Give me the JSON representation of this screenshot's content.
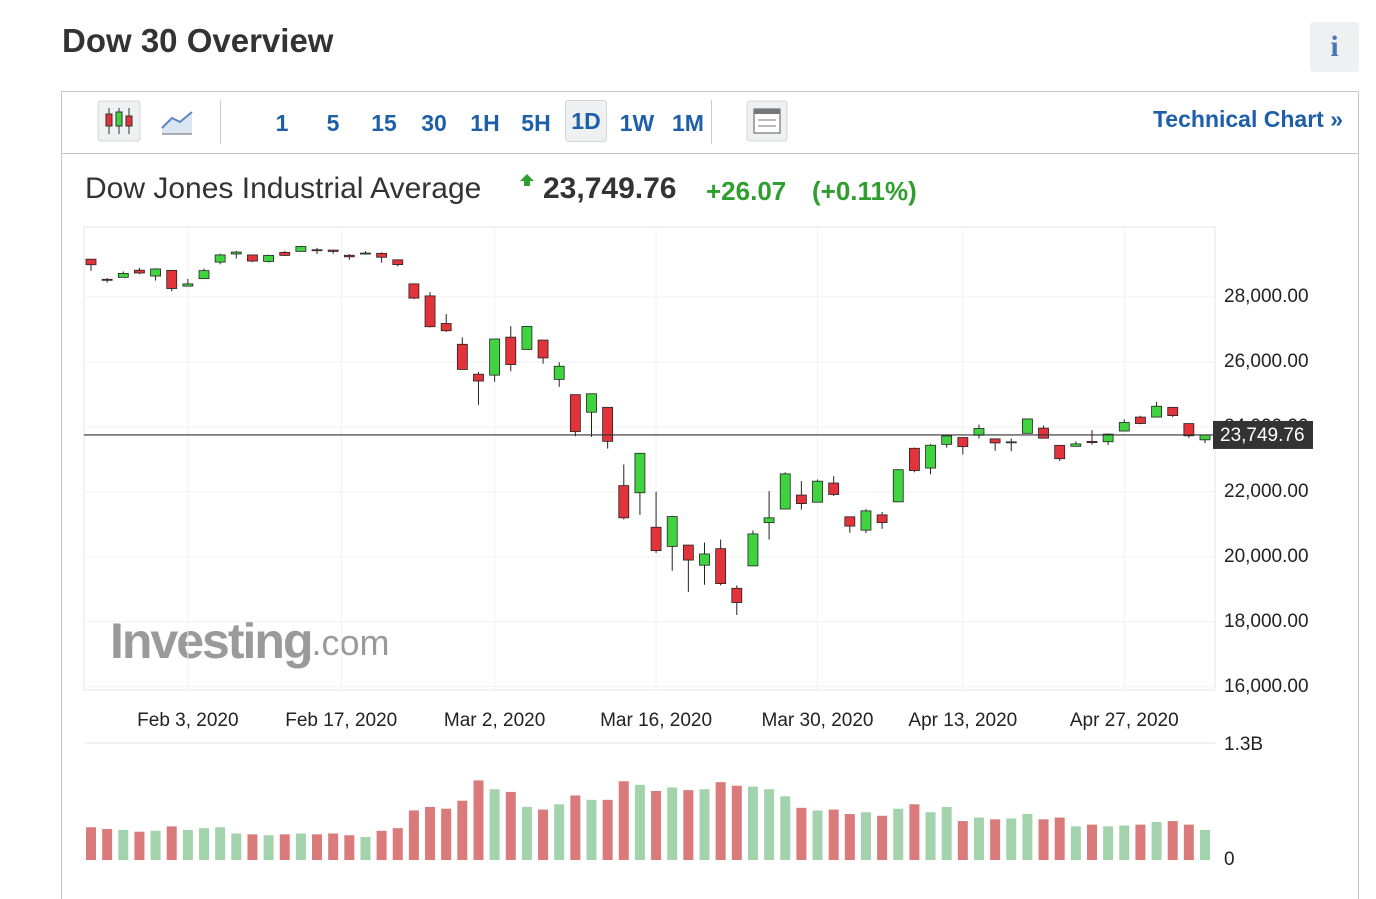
{
  "header": {
    "title": "Dow 30 Overview",
    "info": "i"
  },
  "toolbar": {
    "intervals": [
      "1",
      "5",
      "15",
      "30",
      "1H",
      "5H",
      "1D",
      "1W",
      "1M"
    ],
    "selected": "1D",
    "link": "Technical Chart »"
  },
  "quote": {
    "name": "Dow Jones Industrial Average",
    "price": "23,749.76",
    "change": "+26.07",
    "change_pct": "(+0.11%)"
  },
  "watermark": {
    "brand": "Investing",
    "suffix": ".com"
  },
  "chart_data": {
    "type": "candlestick",
    "x": [
      "2020-01-24",
      "2020-01-27",
      "2020-01-28",
      "2020-01-29",
      "2020-01-30",
      "2020-01-31",
      "2020-02-03",
      "2020-02-04",
      "2020-02-05",
      "2020-02-06",
      "2020-02-07",
      "2020-02-10",
      "2020-02-11",
      "2020-02-12",
      "2020-02-13",
      "2020-02-14",
      "2020-02-18",
      "2020-02-19",
      "2020-02-20",
      "2020-02-21",
      "2020-02-24",
      "2020-02-25",
      "2020-02-26",
      "2020-02-27",
      "2020-02-28",
      "2020-03-02",
      "2020-03-03",
      "2020-03-04",
      "2020-03-05",
      "2020-03-06",
      "2020-03-09",
      "2020-03-10",
      "2020-03-11",
      "2020-03-12",
      "2020-03-13",
      "2020-03-16",
      "2020-03-17",
      "2020-03-18",
      "2020-03-19",
      "2020-03-20",
      "2020-03-23",
      "2020-03-24",
      "2020-03-25",
      "2020-03-26",
      "2020-03-27",
      "2020-03-30",
      "2020-03-31",
      "2020-04-01",
      "2020-04-02",
      "2020-04-03",
      "2020-04-06",
      "2020-04-07",
      "2020-04-08",
      "2020-04-09",
      "2020-04-13",
      "2020-04-14",
      "2020-04-15",
      "2020-04-16",
      "2020-04-17",
      "2020-04-20",
      "2020-04-21",
      "2020-04-22",
      "2020-04-23",
      "2020-04-24",
      "2020-04-27",
      "2020-04-28",
      "2020-04-29",
      "2020-04-30",
      "2020-05-01",
      "2020-05-04"
    ],
    "open": [
      29160,
      28540,
      28600,
      28820,
      28640,
      28815,
      28330,
      28560,
      29070,
      29320,
      29290,
      29090,
      29370,
      29400,
      29450,
      29440,
      29280,
      29320,
      29340,
      29140,
      28400,
      28030,
      27180,
      26540,
      25620,
      25590,
      26760,
      26380,
      26670,
      25460,
      24990,
      24450,
      24600,
      22190,
      21970,
      20910,
      20320,
      20360,
      19740,
      20250,
      19030,
      19720,
      21050,
      21470,
      21900,
      21680,
      22270,
      21230,
      20820,
      21290,
      21690,
      23340,
      22730,
      23460,
      23670,
      23740,
      23630,
      23520,
      23800,
      23960,
      23430,
      23400,
      23550,
      23540,
      23870,
      24300,
      24300,
      24600,
      24100,
      23600
    ],
    "high": [
      29160,
      28580,
      28780,
      28890,
      28880,
      28830,
      28550,
      28870,
      29330,
      29410,
      29290,
      29300,
      29410,
      29570,
      29510,
      29440,
      29320,
      29410,
      29370,
      29140,
      28400,
      28150,
      27470,
      26750,
      25690,
      26710,
      27100,
      27100,
      26670,
      25990,
      24990,
      25020,
      24600,
      22840,
      23190,
      22000,
      21260,
      20370,
      20440,
      20530,
      19120,
      20810,
      22020,
      22600,
      22330,
      22380,
      22480,
      21230,
      21470,
      21380,
      22700,
      23360,
      23470,
      23720,
      23670,
      24070,
      23630,
      23640,
      24260,
      24040,
      23430,
      23550,
      23900,
      23800,
      24230,
      24340,
      24770,
      24600,
      24100,
      23750
    ],
    "low": [
      28800,
      28440,
      28600,
      28700,
      28500,
      28170,
      28330,
      28560,
      29000,
      29180,
      29070,
      29060,
      29260,
      29400,
      29320,
      29330,
      29140,
      29300,
      29050,
      28940,
      27930,
      27060,
      26920,
      25760,
      24680,
      25390,
      25710,
      26380,
      25940,
      25230,
      23710,
      23690,
      23330,
      21150,
      21290,
      20120,
      19570,
      18920,
      19140,
      19120,
      18210,
      19720,
      20530,
      21470,
      21450,
      21680,
      21870,
      20740,
      20730,
      20860,
      21690,
      22600,
      22540,
      23360,
      23150,
      23640,
      23260,
      23250,
      23800,
      23650,
      22950,
      23400,
      23450,
      23440,
      23870,
      24080,
      24300,
      24300,
      23660,
      23500
    ],
    "close": [
      28989,
      28535,
      28722,
      28734,
      28859,
      28256,
      28399,
      28807,
      29290,
      29379,
      29102,
      29276,
      29276,
      29551,
      29423,
      29398,
      29232,
      29348,
      29219,
      28992,
      27961,
      27081,
      26957,
      25766,
      25409,
      26703,
      25917,
      27091,
      26121,
      25865,
      23851,
      25018,
      23553,
      21200,
      23185,
      20189,
      21237,
      19899,
      20087,
      19174,
      18592,
      20704,
      21200,
      22552,
      21637,
      22327,
      21917,
      20944,
      21413,
      21053,
      22680,
      22654,
      23434,
      23719,
      23390,
      23950,
      23505,
      23538,
      24242,
      23650,
      23019,
      23475,
      23515,
      23775,
      24134,
      24101,
      24634,
      24346,
      23724,
      23750
    ],
    "volume": [
      370000000,
      350000000,
      340000000,
      320000000,
      330000000,
      380000000,
      340000000,
      360000000,
      370000000,
      300000000,
      290000000,
      280000000,
      290000000,
      300000000,
      290000000,
      300000000,
      280000000,
      260000000,
      330000000,
      360000000,
      560000000,
      600000000,
      580000000,
      670000000,
      900000000,
      800000000,
      770000000,
      600000000,
      570000000,
      630000000,
      730000000,
      680000000,
      680000000,
      890000000,
      850000000,
      780000000,
      820000000,
      790000000,
      800000000,
      880000000,
      840000000,
      830000000,
      800000000,
      720000000,
      590000000,
      560000000,
      570000000,
      520000000,
      540000000,
      500000000,
      580000000,
      630000000,
      540000000,
      600000000,
      440000000,
      480000000,
      460000000,
      470000000,
      520000000,
      460000000,
      480000000,
      380000000,
      400000000,
      380000000,
      390000000,
      400000000,
      430000000,
      440000000,
      400000000,
      340000000
    ],
    "up_color": "#3fd43f",
    "down_color": "#e2333b",
    "volume_up_color": "#a3d3ad",
    "volume_down_color": "#da7a7a",
    "ylim": [
      15900,
      30150
    ],
    "yticks": [
      {
        "value": 16000,
        "label": "16,000.00"
      },
      {
        "value": 18000,
        "label": "18,000.00"
      },
      {
        "value": 20000,
        "label": "20,000.00"
      },
      {
        "value": 22000,
        "label": "22,000.00"
      },
      {
        "value": 24000,
        "label": "24,000.00"
      },
      {
        "value": 26000,
        "label": "26,000.00"
      },
      {
        "value": 28000,
        "label": "28,000.00"
      }
    ],
    "xticks": [
      {
        "value": "2020-02-03",
        "label": "Feb 3, 2020"
      },
      {
        "value": "2020-02-17",
        "label": "Feb 17, 2020"
      },
      {
        "value": "2020-03-02",
        "label": "Mar 2, 2020"
      },
      {
        "value": "2020-03-16",
        "label": "Mar 16, 2020"
      },
      {
        "value": "2020-03-30",
        "label": "Mar 30, 2020"
      },
      {
        "value": "2020-04-13",
        "label": "Apr 13, 2020"
      },
      {
        "value": "2020-04-27",
        "label": "Apr 27, 2020"
      }
    ],
    "y2lim": [
      0,
      1300000000
    ],
    "y2ticks": [
      0,
      {
        "value": 1300000000,
        "label": "1.3B"
      }
    ],
    "last_price": 23749.76,
    "grid": true
  }
}
